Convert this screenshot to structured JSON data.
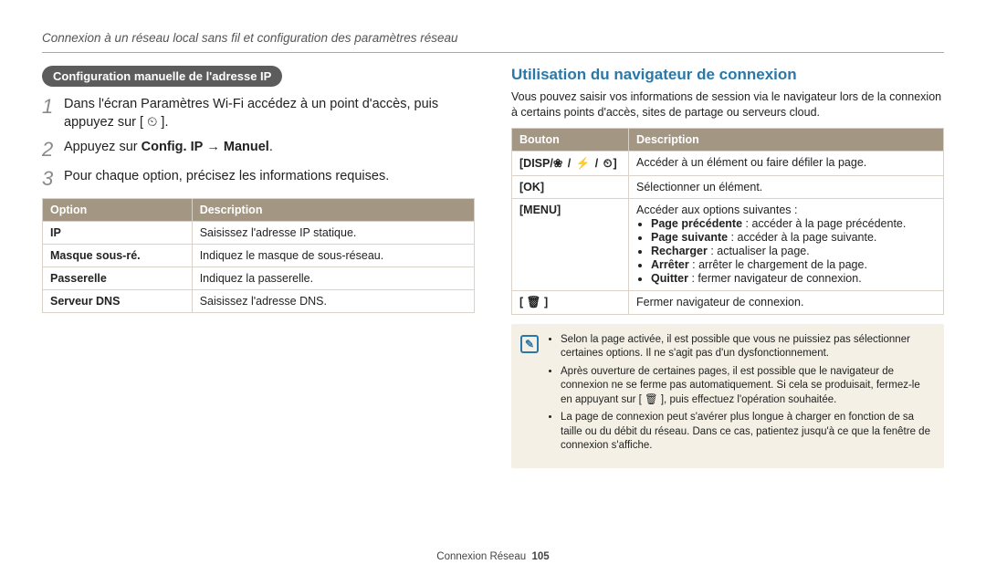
{
  "breadcrumb": "Connexion à un réseau local sans fil et configuration des paramètres réseau",
  "left": {
    "pill": "Configuration manuelle de l'adresse IP",
    "steps": [
      {
        "num": "1",
        "html": "Dans l'écran Paramètres Wi-Fi accédez à un point d'accès, puis appuyez sur [ <span class='timer-icon'>⏲</span> ]."
      },
      {
        "num": "2",
        "html": "Appuyez sur <b>Config. IP</b> → <b>Manuel</b>."
      },
      {
        "num": "3",
        "html": "Pour chaque option, précisez les informations requises."
      }
    ],
    "table": {
      "headers": [
        "Option",
        "Description"
      ],
      "rows": [
        [
          "IP",
          "Saisissez l'adresse IP statique."
        ],
        [
          "Masque sous-ré.",
          "Indiquez le masque de sous-réseau."
        ],
        [
          "Passerelle",
          "Indiquez la passerelle."
        ],
        [
          "Serveur DNS",
          "Saisissez l'adresse DNS."
        ]
      ]
    }
  },
  "right": {
    "title": "Utilisation du navigateur de connexion",
    "intro": "Vous pouvez saisir vos informations de session via le navigateur lors de la connexion à certains points d'accès, sites de partage ou serveurs cloud.",
    "table": {
      "headers": [
        "Bouton",
        "Description"
      ],
      "rows": [
        {
          "btn_html": "[<b>DISP</b>/<span class='icons'>❀ / ⚡ / ⏲</span>]",
          "desc_html": "Accéder à un élément ou faire défiler la page."
        },
        {
          "btn_html": "[<b>OK</b>]",
          "desc_html": "Sélectionner un élément."
        },
        {
          "btn_html": "[<b>MENU</b>]",
          "desc_html": "Accéder aux options suivantes :<ul><li><b>Page précédente</b> : accéder à la page précédente.</li><li><b>Page suivante</b> : accéder à la page suivante.</li><li><b>Recharger</b> : actualiser la page.</li><li><b>Arrêter</b> : arrêter le chargement de la page.</li><li><b>Quitter</b> : fermer navigateur de connexion.</li></ul>"
        },
        {
          "btn_html": "[ 🗑 ]",
          "desc_html": "Fermer navigateur de connexion."
        }
      ]
    },
    "notes": [
      "Selon la page activée, il est possible que vous ne puissiez pas sélectionner certaines options. Il ne s'agit pas d'un dysfonctionnement.",
      "Après ouverture de certaines pages, il est possible que le navigateur de connexion ne se ferme pas automatiquement. Si cela se produisait, fermez-le en appuyant sur [ 🗑 ], puis effectuez l'opération souhaitée.",
      "La page de connexion peut s'avérer plus longue à charger en fonction de sa taille ou du débit du réseau. Dans ce cas, patientez jusqu'à ce que la fenêtre de connexion s'affiche."
    ]
  },
  "footer": {
    "label": "Connexion Réseau",
    "page": "105"
  },
  "colors": {
    "header_bg": "#a39683",
    "header_fg": "#ffffff",
    "border": "#d8d2c8",
    "notebox_bg": "#f4f0e5",
    "blue": "#2a78a8",
    "pill_bg": "#5c5c5c",
    "step_num": "#8a8a8a"
  }
}
